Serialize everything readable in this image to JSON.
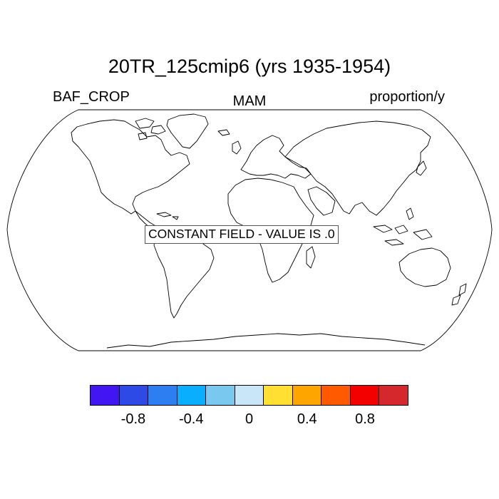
{
  "title": "20TR_125cmip6 (yrs 1935-1954)",
  "left_label": "BAF_CROP",
  "center_label": "MAM",
  "right_label": "proportion/y",
  "notice": "CONSTANT FIELD - VALUE IS .0",
  "colorbar": {
    "colors": [
      "#4216f2",
      "#2e4ae6",
      "#2d7ef0",
      "#0aaeff",
      "#78c8f0",
      "#c8e6f8",
      "#ffe032",
      "#ffa500",
      "#ff5a00",
      "#f40000",
      "#d4282d"
    ],
    "tick_labels": [
      "-0.8",
      "-0.4",
      "0",
      "0.4",
      "0.8"
    ]
  },
  "chart_data": {
    "type": "heatmap",
    "title": "20TR_125cmip6 (yrs 1935-1954)",
    "variable": "BAF_CROP",
    "season": "MAM",
    "units": "proportion/y",
    "projection": "Robinson",
    "field": "constant",
    "constant_value": 0.0,
    "colorbar_levels": [
      -1.0,
      -0.8,
      -0.6,
      -0.4,
      -0.2,
      0,
      0.2,
      0.4,
      0.6,
      0.8,
      1.0
    ],
    "colorbar_tick_values": [
      -0.8,
      -0.4,
      0,
      0.4,
      0.8
    ]
  }
}
